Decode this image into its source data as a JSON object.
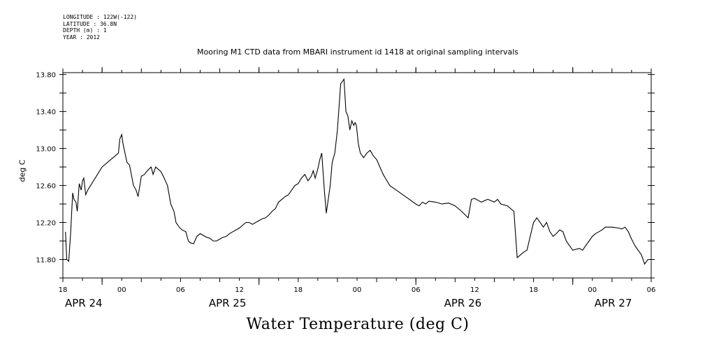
{
  "header": {
    "longitude": "LONGITUDE : 122W(-122)",
    "latitude": "LATITUDE : 36.8N",
    "depth": "DEPTH (m) : 1",
    "year": "YEAR : 2012"
  },
  "chart_data": {
    "type": "line",
    "title": "Mooring M1 CTD data from MBARI instrument id 1418 at original sampling intervals",
    "ylabel": "deg C",
    "bottom_title": "Water Temperature (deg C)",
    "ylim": [
      11.6,
      13.82
    ],
    "xlim_hours": [
      -6,
      84
    ],
    "y_ticks": [
      "13.80",
      "13.40",
      "13.00",
      "12.60",
      "12.20",
      "11.80"
    ],
    "y_tick_values": [
      13.8,
      13.4,
      13.0,
      12.6,
      12.2,
      11.8
    ],
    "x_tick_labels": [
      "18",
      "00",
      "06",
      "12",
      "18",
      "00",
      "06",
      "12",
      "18",
      "00",
      "06"
    ],
    "x_tick_hours": [
      -6,
      3,
      12,
      21,
      30,
      39,
      48,
      57,
      66,
      75,
      84
    ],
    "day_labels": [
      "APR 24",
      "APR 25",
      "APR 26",
      "APR 27"
    ],
    "day_label_hours": [
      -6,
      16,
      52,
      75
    ],
    "x_hours": [
      -5.6,
      -5.4,
      -5.1,
      -4.8,
      -4.5,
      -4.3,
      -4.0,
      -3.8,
      -3.5,
      -3.2,
      -3.0,
      -2.8,
      -2.5,
      -2.2,
      0.0,
      2.5,
      2.7,
      3.0,
      3.2,
      3.5,
      3.8,
      4.2,
      4.8,
      5.2,
      5.5,
      6.0,
      6.5,
      6.8,
      7.2,
      7.5,
      7.8,
      8.2,
      8.5,
      9.0,
      9.5,
      10.0,
      10.5,
      11.0,
      11.3,
      11.8,
      12.2,
      12.8,
      13.2,
      13.5,
      14.0,
      14.5,
      15.0,
      15.5,
      16.0,
      16.5,
      17.0,
      17.5,
      18.0,
      18.5,
      19.0,
      19.5,
      20.0,
      20.5,
      21.0,
      21.5,
      22.0,
      22.5,
      23.0,
      23.5,
      24.0,
      24.5,
      25.0,
      25.5,
      26.0,
      26.5,
      27.0,
      27.5,
      28.0,
      28.5,
      29.0,
      29.5,
      30.0,
      30.5,
      31.0,
      31.5,
      32.0,
      32.3,
      32.6,
      33.0,
      33.3,
      33.6,
      34.0,
      34.3,
      34.6,
      34.9,
      35.2,
      35.6,
      36.0,
      36.5,
      37.0,
      37.3,
      37.6,
      37.9,
      38.2,
      38.5,
      38.7,
      38.9,
      39.2,
      39.5,
      40.0,
      40.5,
      41.0,
      41.5,
      42.0,
      42.5,
      43.0,
      44.0,
      45.0,
      46.0,
      47.0,
      48.0,
      48.5,
      49.0,
      49.5,
      50.0,
      51.0,
      52.0,
      53.0,
      54.0,
      55.0,
      56.0,
      56.5,
      57.0,
      57.5,
      58.0,
      59.0,
      60.0,
      60.5,
      61.0,
      62.0,
      63.0,
      63.5,
      64.0,
      64.5,
      65.0,
      65.5,
      66.0,
      66.5,
      67.0,
      67.5,
      68.0,
      68.5,
      69.0,
      69.5,
      70.0,
      70.5,
      71.0,
      72.0,
      73.0,
      73.5,
      74.0,
      74.5,
      75.0,
      75.5,
      76.0,
      76.5,
      77.0,
      78.0,
      79.0,
      79.5,
      80.0,
      80.5,
      81.0,
      81.5,
      82.0,
      82.5,
      83.0,
      83.5,
      84.0
    ],
    "series": [
      {
        "values": [
          12.1,
          11.8,
          11.78,
          12.1,
          12.52,
          12.45,
          12.42,
          12.32,
          12.62,
          12.55,
          12.65,
          12.68,
          12.5,
          12.55,
          12.8,
          12.95,
          13.1,
          13.15,
          13.05,
          12.95,
          12.85,
          12.82,
          12.6,
          12.55,
          12.48,
          12.7,
          12.72,
          12.75,
          12.78,
          12.8,
          12.72,
          12.8,
          12.78,
          12.75,
          12.68,
          12.6,
          12.4,
          12.32,
          12.2,
          12.15,
          12.12,
          12.1,
          12.0,
          11.98,
          11.97,
          12.05,
          12.08,
          12.06,
          12.04,
          12.03,
          12.0,
          12.0,
          12.02,
          12.04,
          12.05,
          12.08,
          12.1,
          12.12,
          12.14,
          12.17,
          12.2,
          12.2,
          12.18,
          12.2,
          12.22,
          12.24,
          12.25,
          12.28,
          12.32,
          12.35,
          12.42,
          12.45,
          12.48,
          12.5,
          12.55,
          12.6,
          12.62,
          12.68,
          12.72,
          12.65,
          12.7,
          12.76,
          12.68,
          12.78,
          12.88,
          12.95,
          12.55,
          12.3,
          12.45,
          12.6,
          12.85,
          12.95,
          13.2,
          13.7,
          13.75,
          13.4,
          13.35,
          13.2,
          13.3,
          13.25,
          13.28,
          13.25,
          13.05,
          12.95,
          12.9,
          12.95,
          12.98,
          12.92,
          12.88,
          12.8,
          12.72,
          12.6,
          12.55,
          12.5,
          12.45,
          12.4,
          12.38,
          12.42,
          12.4,
          12.43,
          12.42,
          12.4,
          12.41,
          12.38,
          12.32,
          12.25,
          12.45,
          12.46,
          12.44,
          12.42,
          12.45,
          12.42,
          12.45,
          12.4,
          12.38,
          12.32,
          11.82,
          11.85,
          11.88,
          11.9,
          12.05,
          12.2,
          12.25,
          12.2,
          12.15,
          12.2,
          12.1,
          12.05,
          12.08,
          12.12,
          12.1,
          12.0,
          11.9,
          11.92,
          11.9,
          11.95,
          12.0,
          12.05,
          12.08,
          12.1,
          12.12,
          12.15,
          12.15,
          12.14,
          12.13,
          12.15,
          12.1,
          12.02,
          11.95,
          11.9,
          11.85,
          11.75,
          11.8,
          11.8
        ]
      }
    ]
  }
}
